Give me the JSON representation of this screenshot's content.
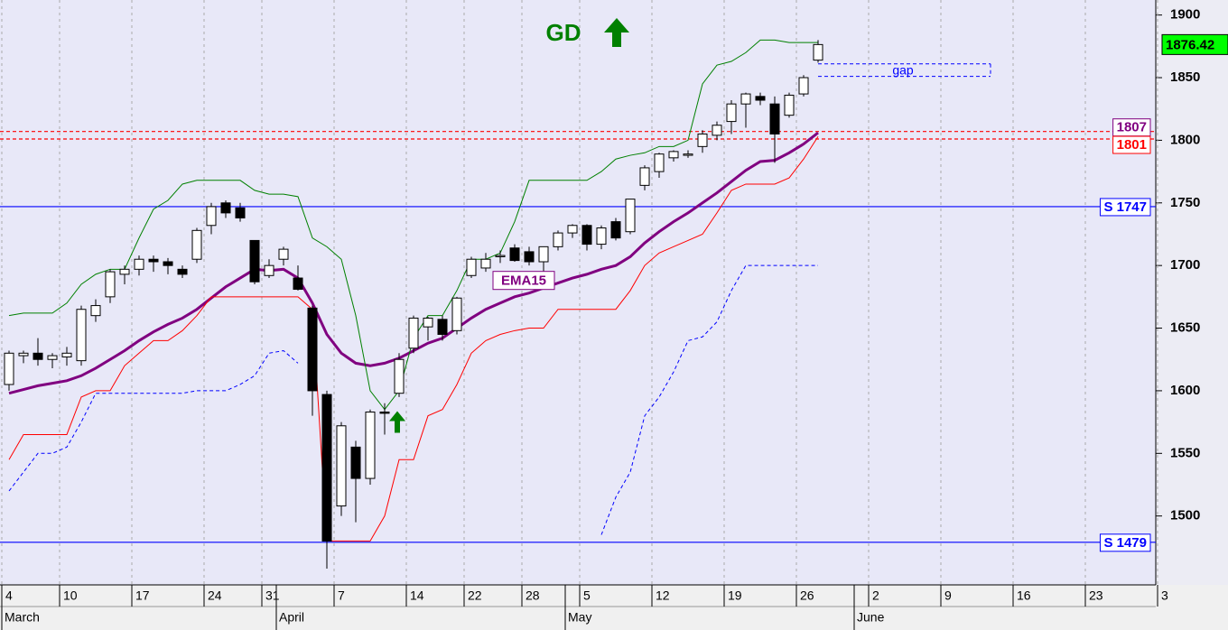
{
  "chart_data": {
    "type": "candlestick",
    "title": "GD",
    "categories": [
      "4",
      null,
      null,
      null,
      "10",
      null,
      null,
      null,
      null,
      "17",
      null,
      null,
      null,
      null,
      "24",
      null,
      null,
      null,
      "31",
      null,
      null,
      null,
      null,
      "7",
      null,
      null,
      null,
      null,
      "14",
      null,
      null,
      null,
      "22",
      null,
      null,
      null,
      "28",
      null,
      null,
      null,
      "5",
      null,
      null,
      null,
      null,
      "12",
      null,
      null,
      null,
      null,
      "19",
      null,
      null,
      null,
      null,
      "26",
      null,
      null,
      null,
      null,
      "2",
      null,
      null,
      null,
      null,
      "9",
      null,
      null,
      null,
      null,
      "16",
      null,
      null,
      null,
      null,
      "23",
      null,
      null,
      null,
      null,
      "3"
    ],
    "months": [
      {
        "label": "March",
        "start": 0
      },
      {
        "label": "April",
        "start": 19
      },
      {
        "label": "May",
        "start": 39
      },
      {
        "label": "June",
        "start": 59
      }
    ],
    "open": [
      1605,
      1628,
      1630,
      1625,
      1627,
      1624,
      1660,
      1675,
      1693,
      1697,
      1705,
      1703,
      1697,
      1705,
      1732,
      1750,
      1746,
      1720,
      1692,
      1705,
      1690,
      1666,
      1597,
      1508,
      1555,
      1530,
      1583,
      1598,
      1634,
      1651,
      1657,
      1648,
      1692,
      1698,
      1707,
      1714,
      1711,
      1703,
      1715,
      1726,
      1732,
      1717,
      1735,
      1727,
      1764,
      1775,
      1786,
      1788,
      1795,
      1804,
      1815,
      1829,
      1835,
      1829,
      1820,
      1837,
      1864,
      null,
      null,
      null,
      null,
      null,
      null,
      null,
      null,
      null,
      null,
      null,
      null,
      null,
      null,
      null,
      null,
      null,
      null,
      null,
      null,
      null,
      null,
      null,
      null
    ],
    "high": [
      1632,
      1632,
      1642,
      1630,
      1635,
      1668,
      1673,
      1697,
      1700,
      1708,
      1708,
      1706,
      1700,
      1730,
      1750,
      1752,
      1750,
      1720,
      1705,
      1715,
      1700,
      1668,
      1600,
      1575,
      1560,
      1585,
      1590,
      1630,
      1660,
      1659,
      1660,
      1675,
      1707,
      1710,
      1712,
      1717,
      1715,
      1715,
      1728,
      1733,
      1733,
      1732,
      1738,
      1752,
      1780,
      1790,
      1792,
      1792,
      1808,
      1815,
      1832,
      1838,
      1838,
      1835,
      1838,
      1852,
      1880,
      null,
      null,
      null,
      null,
      null,
      null,
      null,
      null,
      null,
      null,
      null,
      null,
      null,
      null,
      null,
      null,
      null,
      null,
      null,
      null,
      null,
      null,
      null,
      null
    ],
    "low": [
      1600,
      1622,
      1620,
      1618,
      1620,
      1620,
      1655,
      1670,
      1685,
      1692,
      1695,
      1693,
      1690,
      1702,
      1725,
      1738,
      1735,
      1685,
      1690,
      1700,
      1680,
      1580,
      1458,
      1500,
      1495,
      1525,
      1565,
      1595,
      1630,
      1640,
      1640,
      1645,
      1690,
      1695,
      1702,
      1703,
      1700,
      1692,
      1712,
      1722,
      1712,
      1713,
      1720,
      1725,
      1760,
      1770,
      1783,
      1786,
      1790,
      1800,
      1805,
      1810,
      1828,
      1782,
      1818,
      1835,
      1862,
      null,
      null,
      null,
      null,
      null,
      null,
      null,
      null,
      null,
      null,
      null,
      null,
      null,
      null,
      null,
      null,
      null,
      null,
      null,
      null,
      null,
      null,
      null,
      null
    ],
    "close": [
      1630,
      1630,
      1625,
      1628,
      1630,
      1665,
      1668,
      1695,
      1697,
      1705,
      1703,
      1700,
      1693,
      1728,
      1747,
      1742,
      1738,
      1687,
      1700,
      1713,
      1681,
      1600,
      1480,
      1572,
      1530,
      1583,
      1582,
      1625,
      1658,
      1658,
      1645,
      1674,
      1705,
      1705,
      1708,
      1704,
      1703,
      1715,
      1726,
      1732,
      1717,
      1730,
      1722,
      1753,
      1778,
      1789,
      1791,
      1789,
      1805,
      1812,
      1829,
      1837,
      1832,
      1805,
      1836,
      1850,
      1876.42,
      null,
      null,
      null,
      null,
      null,
      null,
      null,
      null,
      null,
      null,
      null,
      null,
      null,
      null,
      null,
      null,
      null,
      null,
      null,
      null,
      null,
      null,
      null,
      null
    ],
    "series": [
      {
        "name": "EMA15",
        "color": "#800080",
        "width": 3,
        "dash": "solid",
        "values": [
          1598,
          1601,
          1604,
          1606,
          1608,
          1612,
          1618,
          1625,
          1632,
          1640,
          1647,
          1653,
          1658,
          1665,
          1674,
          1683,
          1690,
          1697,
          1696,
          1697,
          1690,
          1670,
          1645,
          1630,
          1622,
          1620,
          1622,
          1626,
          1632,
          1638,
          1642,
          1650,
          1658,
          1665,
          1670,
          1675,
          1678,
          1682,
          1686,
          1690,
          1693,
          1697,
          1700,
          1707,
          1718,
          1727,
          1735,
          1742,
          1750,
          1758,
          1767,
          1776,
          1783,
          1784,
          1790,
          1797,
          1806,
          null,
          null,
          null,
          null,
          null,
          null,
          null,
          null,
          null,
          null,
          null,
          null,
          null,
          null,
          null,
          null,
          null,
          null,
          null,
          null,
          null,
          null,
          null,
          null
        ]
      },
      {
        "color": "#008000",
        "width": 1,
        "dash": "solid",
        "values": [
          1660,
          1662,
          1662,
          1662,
          1670,
          1685,
          1693,
          1697,
          1697,
          1722,
          1745,
          1752,
          1765,
          1768,
          1768,
          1768,
          1768,
          1760,
          1757,
          1757,
          1755,
          1722,
          1715,
          1705,
          1660,
          1600,
          1585,
          1600,
          1642,
          1660,
          1660,
          1680,
          1705,
          1705,
          1710,
          1735,
          1768,
          1768,
          1768,
          1768,
          1768,
          1775,
          1785,
          1788,
          1790,
          1795,
          1795,
          1800,
          1845,
          1860,
          1863,
          1870,
          1880,
          1880,
          1878,
          1878,
          1878,
          null,
          null,
          null,
          null,
          null,
          null,
          null,
          null,
          null,
          null,
          null,
          null,
          null,
          null,
          null,
          null,
          null,
          null,
          null,
          null,
          null,
          null,
          null,
          null
        ]
      },
      {
        "color": "#ff0000",
        "width": 1,
        "dash": "solid",
        "values": [
          1545,
          1565,
          1565,
          1565,
          1565,
          1595,
          1600,
          1600,
          1620,
          1630,
          1640,
          1640,
          1648,
          1660,
          1675,
          1675,
          1675,
          1675,
          1675,
          1675,
          1675,
          1665,
          1480,
          1480,
          1480,
          1480,
          1500,
          1545,
          1545,
          1580,
          1585,
          1605,
          1630,
          1640,
          1645,
          1648,
          1650,
          1650,
          1665,
          1665,
          1665,
          1665,
          1665,
          1680,
          1700,
          1710,
          1715,
          1720,
          1725,
          1742,
          1760,
          1765,
          1765,
          1765,
          1770,
          1785,
          1803,
          null,
          null,
          null,
          null,
          null,
          null,
          null,
          null,
          null,
          null,
          null,
          null,
          null,
          null,
          null,
          null,
          null,
          null,
          null,
          null,
          null,
          null,
          null,
          null
        ]
      },
      {
        "color": "#0000ff",
        "width": 1,
        "dash": "dashed",
        "values": [
          1520,
          1535,
          1550,
          1550,
          1555,
          1575,
          1598,
          1598,
          1598,
          1598,
          1598,
          1598,
          1598,
          1600,
          1600,
          1600,
          1605,
          1612,
          1630,
          1632,
          1622,
          null,
          null,
          null,
          null,
          null,
          null,
          null,
          null,
          null,
          null,
          null,
          null,
          null,
          null,
          null,
          null,
          null,
          null,
          null,
          null,
          1485,
          1515,
          1535,
          1580,
          1595,
          1615,
          1640,
          1643,
          1655,
          1680,
          1700,
          1700,
          1700,
          1700,
          1700,
          1700,
          null,
          null,
          null,
          null,
          null,
          null,
          null,
          null,
          null,
          null,
          null,
          null,
          null,
          null,
          null,
          null,
          null,
          null,
          null,
          null,
          null,
          null,
          null,
          null
        ]
      }
    ],
    "levels": [
      {
        "value": 1807,
        "label": "1807",
        "color": "#ff0000",
        "label_color": "#800080",
        "dash": "dashed"
      },
      {
        "value": 1801,
        "label": "1801",
        "color": "#ff0000",
        "label_color": "#ff0000",
        "dash": "dashed"
      },
      {
        "value": 1747,
        "label": "S 1747",
        "color": "#0000ff",
        "label_color": "#0000ff",
        "dash": "solid"
      },
      {
        "value": 1479,
        "label": "S 1479",
        "color": "#0000ff",
        "label_color": "#0000ff",
        "dash": "solid"
      }
    ],
    "gap": {
      "label": "gap",
      "low": 1851,
      "high": 1861
    },
    "signals": [
      {
        "index": 26,
        "direction": "up"
      }
    ],
    "last_price": 1876.42,
    "ylim": [
      1445,
      1912
    ],
    "yticks": [
      1500,
      1550,
      1600,
      1650,
      1700,
      1750,
      1800,
      1850,
      1900
    ],
    "grid": true
  }
}
